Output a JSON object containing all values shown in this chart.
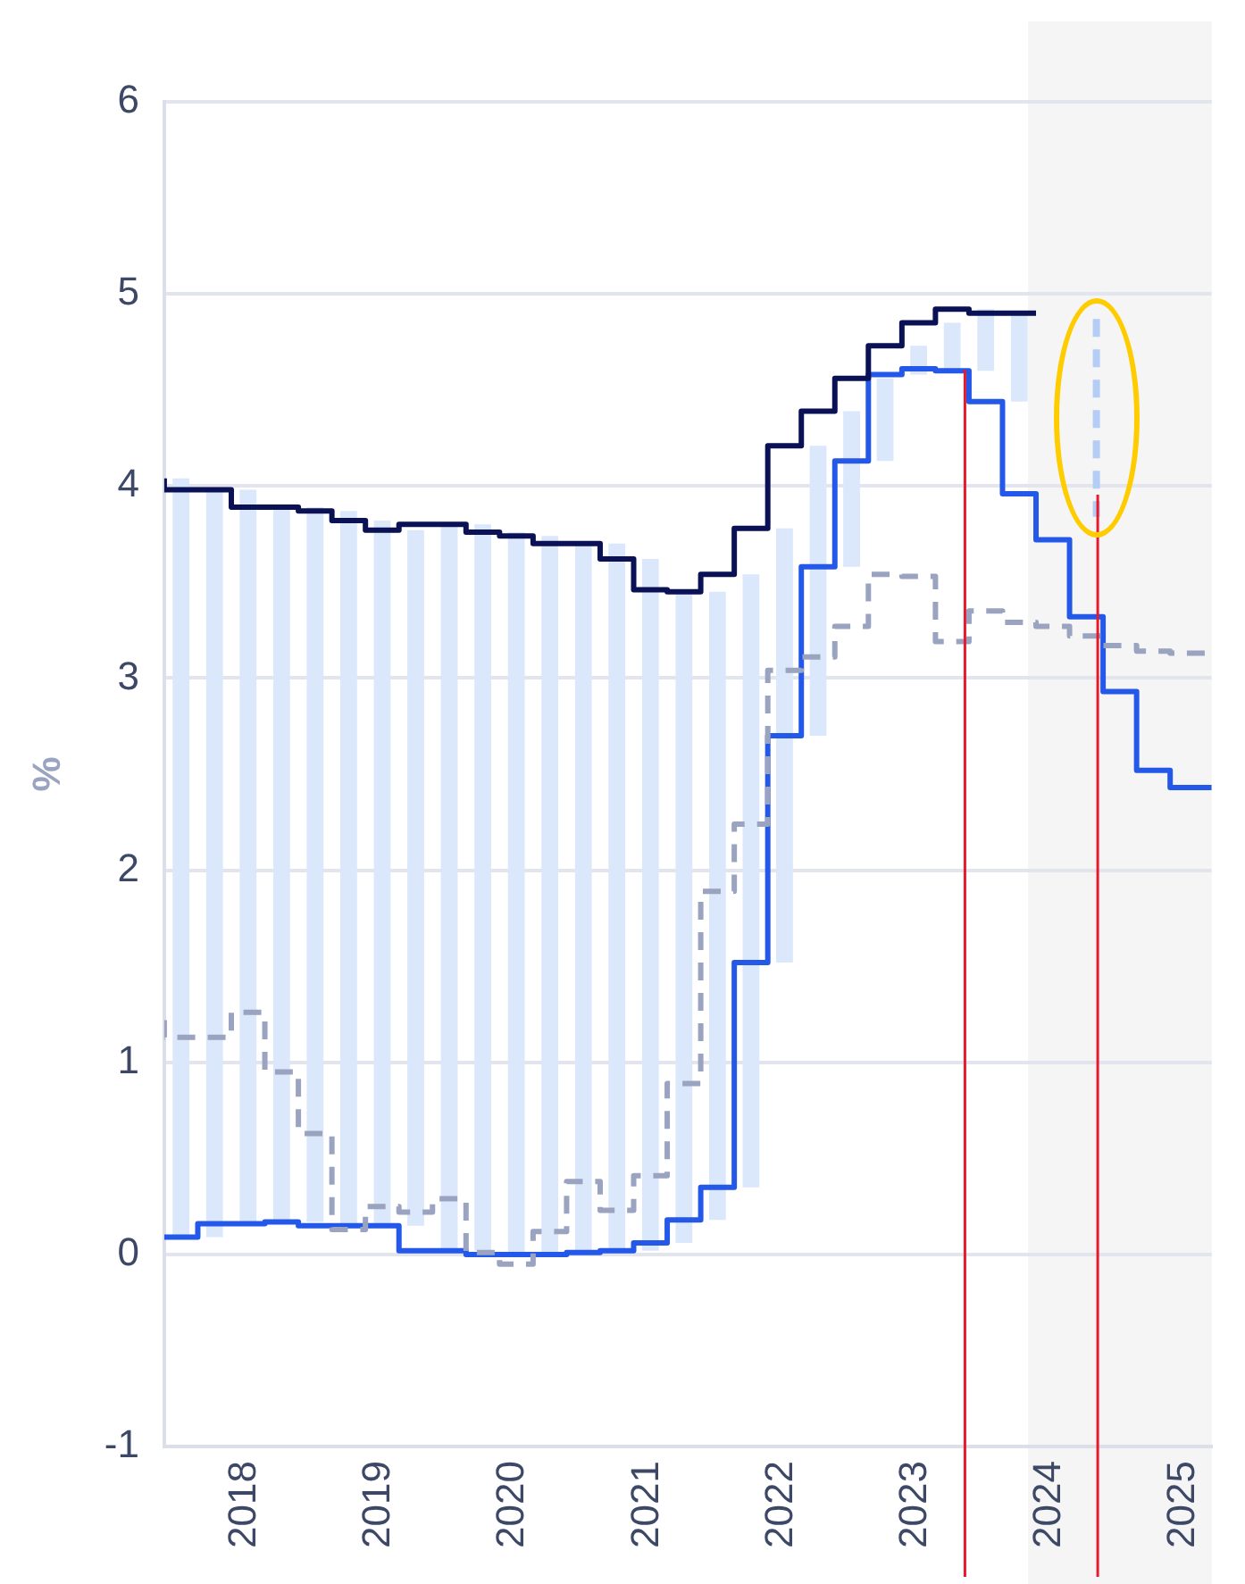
{
  "chart_data": {
    "type": "step",
    "ylabel": "%",
    "xlim": [
      2017.4,
      2025.21
    ],
    "xticks": [
      2018,
      2019,
      2020,
      2021,
      2022,
      2023,
      2024,
      2025
    ],
    "ylim": [
      -1,
      6
    ],
    "yticks": [
      -1,
      0,
      1,
      2,
      3,
      4,
      5,
      6
    ],
    "grid": "y",
    "legend": false,
    "bands": [
      {
        "axis": "x",
        "from": 2023.84,
        "to": 2025.21,
        "color": "#f5f5f6"
      }
    ],
    "ref_lines": [
      {
        "axis": "x",
        "value": 2023.37,
        "color": "#e8192c"
      },
      {
        "axis": "x",
        "value": 2024.36,
        "color": "#e8192c"
      }
    ],
    "series": [
      {
        "type": "bar",
        "color": "#dbe7fb",
        "x": [
          2017.525,
          2017.775,
          2018.025,
          2018.275,
          2018.525,
          2018.775,
          2019.025,
          2019.275,
          2019.525,
          2019.775,
          2020.025,
          2020.275,
          2020.525,
          2020.775,
          2021.025,
          2021.275,
          2021.525,
          2021.775,
          2022.025,
          2022.275,
          2022.525,
          2022.775,
          2023.025,
          2023.275,
          2023.525,
          2023.775
        ],
        "base": [
          0.09,
          0.09,
          0.16,
          0.16,
          0.17,
          0.15,
          0.15,
          0.15,
          0.02,
          0.02,
          0.0,
          0.0,
          0.0,
          0.01,
          0.02,
          0.06,
          0.18,
          0.35,
          1.52,
          2.7,
          3.58,
          4.13,
          4.58,
          4.61,
          4.6,
          4.44
        ],
        "values": [
          3.95,
          3.89,
          3.82,
          3.73,
          3.72,
          3.72,
          3.67,
          3.62,
          3.78,
          3.78,
          3.76,
          3.74,
          3.7,
          3.69,
          3.6,
          3.4,
          3.27,
          3.19,
          2.26,
          1.51,
          0.81,
          0.43,
          0.15,
          0.24,
          0.32,
          0.46
        ]
      },
      {
        "color": "#9aa3c0",
        "line_style": "dashed",
        "x": [
          2017.4,
          2017.65,
          2017.9,
          2018.15,
          2018.4,
          2018.65,
          2018.9,
          2019.15,
          2019.4,
          2019.65,
          2019.9,
          2020.15,
          2020.4,
          2020.65,
          2020.9,
          2021.15,
          2021.4,
          2021.65,
          2021.9,
          2022.15,
          2022.4,
          2022.65,
          2022.9,
          2023.15,
          2023.4,
          2023.65,
          2023.9,
          2024.15,
          2024.4,
          2024.65,
          2024.9,
          2025.15,
          2025.21
        ],
        "values": [
          1.22,
          1.13,
          1.13,
          1.26,
          0.95,
          0.63,
          0.13,
          0.25,
          0.22,
          0.29,
          0.01,
          -0.05,
          0.12,
          0.38,
          0.23,
          0.41,
          0.89,
          1.89,
          2.24,
          3.04,
          3.11,
          3.27,
          3.54,
          3.53,
          3.19,
          3.35,
          3.29,
          3.27,
          3.22,
          3.17,
          3.14,
          3.13,
          3.13
        ]
      },
      {
        "color": "#0a1155",
        "x": [
          2017.4,
          2017.65,
          2017.9,
          2018.15,
          2018.4,
          2018.65,
          2018.9,
          2019.15,
          2019.4,
          2019.65,
          2019.9,
          2020.15,
          2020.4,
          2020.65,
          2020.9,
          2021.15,
          2021.4,
          2021.65,
          2021.9,
          2022.15,
          2022.4,
          2022.65,
          2022.9,
          2023.15,
          2023.4,
          2023.65,
          2023.9
        ],
        "values": [
          4.04,
          3.98,
          3.98,
          3.89,
          3.89,
          3.87,
          3.82,
          3.77,
          3.8,
          3.8,
          3.76,
          3.74,
          3.7,
          3.7,
          3.62,
          3.46,
          3.45,
          3.54,
          3.78,
          4.21,
          4.39,
          4.56,
          4.73,
          4.85,
          4.92,
          4.9,
          4.9
        ]
      },
      {
        "color": "#2458e8",
        "x": [
          2017.4,
          2017.65,
          2017.9,
          2018.15,
          2018.4,
          2018.65,
          2018.9,
          2019.15,
          2019.4,
          2019.65,
          2019.9,
          2020.15,
          2020.4,
          2020.65,
          2020.9,
          2021.15,
          2021.4,
          2021.65,
          2021.9,
          2022.15,
          2022.4,
          2022.65,
          2022.9,
          2023.15,
          2023.4,
          2023.65,
          2023.9,
          2024.15,
          2024.4,
          2024.65,
          2024.9,
          2025.15,
          2025.21
        ],
        "values": [
          0.09,
          0.09,
          0.16,
          0.16,
          0.17,
          0.15,
          0.15,
          0.15,
          0.02,
          0.02,
          0.0,
          0.0,
          0.0,
          0.01,
          0.02,
          0.06,
          0.18,
          0.35,
          1.52,
          2.7,
          3.58,
          4.13,
          4.58,
          4.61,
          4.6,
          4.44,
          3.96,
          3.72,
          3.32,
          2.93,
          2.52,
          2.43,
          2.43
        ]
      },
      {
        "type": "line",
        "color": "#b3cdf5",
        "line_style": "dashed",
        "x": [
          2024.35,
          2024.35
        ],
        "values": [
          4.87,
          3.84
        ]
      }
    ]
  }
}
